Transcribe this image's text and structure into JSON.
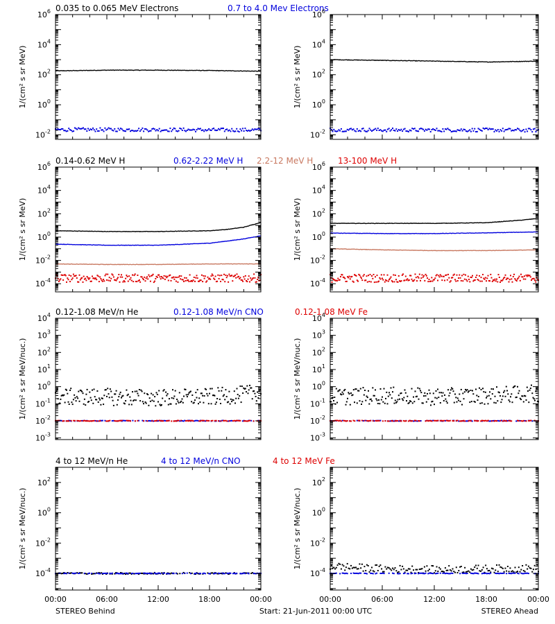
{
  "figure": {
    "footer_left": "STEREO Behind",
    "footer_center": "Start: 21-Jun-2011 00:00 UTC",
    "footer_right": "STEREO Ahead"
  },
  "colors": {
    "black": "#000000",
    "blue": "#0000dd",
    "tan": "#c87860",
    "red": "#dd0000"
  },
  "chart_data": [
    {
      "type": "scatter",
      "panel": "electrons",
      "side": "behind",
      "ylabel": "1/(cm² s sr MeV)",
      "yscale": "log",
      "ylim": [
        0.005,
        1000000
      ],
      "yticks": [
        {
          "v": 0.01,
          "b": "10",
          "e": "-2"
        },
        {
          "v": 1,
          "b": "10",
          "e": "0"
        },
        {
          "v": 100,
          "b": "10",
          "e": "2"
        },
        {
          "v": 10000,
          "b": "10",
          "e": "4"
        },
        {
          "v": 1000000,
          "b": "10",
          "e": "6"
        }
      ],
      "xlim": [
        0,
        24
      ],
      "xticks": [],
      "legend": [
        {
          "label": "0.035 to 0.065 MeV Electrons",
          "color": "#000000"
        },
        {
          "label": "0.7 to 4.0 Mev Electrons",
          "color": "#0000dd"
        }
      ],
      "series": [
        {
          "name": "0.035 to 0.065 MeV Electrons",
          "color": "#000000",
          "style": "line",
          "x": [
            0,
            6,
            12,
            18,
            24
          ],
          "y": [
            180,
            200,
            200,
            190,
            170
          ]
        },
        {
          "name": "0.7 to 4.0 Mev Electrons",
          "color": "#0000dd",
          "style": "dots",
          "x": [
            0,
            6,
            12,
            18,
            24
          ],
          "y": [
            0.022,
            0.022,
            0.022,
            0.021,
            0.021
          ],
          "scatter": 0.12
        }
      ]
    },
    {
      "type": "scatter",
      "panel": "electrons",
      "side": "ahead",
      "ylabel": "1/(cm² s sr MeV)",
      "yscale": "log",
      "ylim": [
        0.005,
        1000000
      ],
      "yticks": [
        {
          "v": 0.01,
          "b": "10",
          "e": "-2"
        },
        {
          "v": 1,
          "b": "10",
          "e": "0"
        },
        {
          "v": 100,
          "b": "10",
          "e": "2"
        },
        {
          "v": 10000,
          "b": "10",
          "e": "4"
        },
        {
          "v": 1000000,
          "b": "10",
          "e": "6"
        }
      ],
      "xlim": [
        0,
        24
      ],
      "xticks": [],
      "legend": [],
      "series": [
        {
          "name": "0.035 to 0.065 MeV Electrons",
          "color": "#000000",
          "style": "line",
          "x": [
            0,
            6,
            12,
            18,
            24
          ],
          "y": [
            1000,
            900,
            800,
            700,
            800
          ]
        },
        {
          "name": "0.7 to 4.0 Mev Electrons",
          "color": "#0000dd",
          "style": "dots",
          "x": [
            0,
            6,
            12,
            18,
            24
          ],
          "y": [
            0.022,
            0.021,
            0.021,
            0.021,
            0.02
          ],
          "scatter": 0.12
        }
      ]
    },
    {
      "type": "scatter",
      "panel": "protons",
      "side": "behind",
      "ylabel": "1/(cm² s sr MeV)",
      "yscale": "log",
      "ylim": [
        2e-05,
        1000000
      ],
      "yticks": [
        {
          "v": 0.0001,
          "b": "10",
          "e": "-4"
        },
        {
          "v": 0.01,
          "b": "10",
          "e": "-2"
        },
        {
          "v": 1,
          "b": "10",
          "e": "0"
        },
        {
          "v": 100,
          "b": "10",
          "e": "2"
        },
        {
          "v": 10000,
          "b": "10",
          "e": "4"
        },
        {
          "v": 1000000,
          "b": "10",
          "e": "6"
        }
      ],
      "xlim": [
        0,
        24
      ],
      "xticks": [],
      "legend": [
        {
          "label": "0.14-0.62 MeV H",
          "color": "#000000"
        },
        {
          "label": "0.62-2.22 MeV H",
          "color": "#0000dd"
        },
        {
          "label": "2.2-12 MeV H",
          "color": "#c87860"
        },
        {
          "label": "13-100 MeV H",
          "color": "#dd0000"
        }
      ],
      "series": [
        {
          "name": "0.14-0.62 MeV H",
          "color": "#000000",
          "style": "line",
          "x": [
            0,
            6,
            12,
            18,
            20,
            22,
            24
          ],
          "y": [
            3.5,
            3,
            3,
            3.5,
            4.5,
            7,
            18
          ]
        },
        {
          "name": "0.62-2.22 MeV H",
          "color": "#0000dd",
          "style": "line",
          "x": [
            0,
            6,
            12,
            18,
            20,
            22,
            24
          ],
          "y": [
            0.25,
            0.2,
            0.2,
            0.3,
            0.45,
            0.7,
            1.3
          ]
        },
        {
          "name": "2.2-12 MeV H",
          "color": "#c87860",
          "style": "line",
          "x": [
            0,
            6,
            12,
            18,
            24
          ],
          "y": [
            0.005,
            0.0045,
            0.0045,
            0.005,
            0.005
          ]
        },
        {
          "name": "13-100 MeV H",
          "color": "#dd0000",
          "style": "dots",
          "x": [
            0,
            6,
            12,
            18,
            24
          ],
          "y": [
            0.0003,
            0.0003,
            0.0003,
            0.0003,
            0.0003
          ],
          "scatter": 0.35
        }
      ]
    },
    {
      "type": "scatter",
      "panel": "protons",
      "side": "ahead",
      "ylabel": "1/(cm² s sr MeV)",
      "yscale": "log",
      "ylim": [
        2e-05,
        1000000
      ],
      "yticks": [
        {
          "v": 0.0001,
          "b": "10",
          "e": "-4"
        },
        {
          "v": 0.01,
          "b": "10",
          "e": "-2"
        },
        {
          "v": 1,
          "b": "10",
          "e": "0"
        },
        {
          "v": 100,
          "b": "10",
          "e": "2"
        },
        {
          "v": 10000,
          "b": "10",
          "e": "4"
        },
        {
          "v": 1000000,
          "b": "10",
          "e": "6"
        }
      ],
      "xlim": [
        0,
        24
      ],
      "xticks": [],
      "legend": [],
      "series": [
        {
          "name": "0.14-0.62 MeV H",
          "color": "#000000",
          "style": "line",
          "x": [
            0,
            6,
            12,
            18,
            20,
            22,
            24
          ],
          "y": [
            15,
            15,
            15,
            17,
            22,
            28,
            40
          ]
        },
        {
          "name": "0.62-2.22 MeV H",
          "color": "#0000dd",
          "style": "line",
          "x": [
            0,
            6,
            12,
            18,
            24
          ],
          "y": [
            2.2,
            2,
            2,
            2.3,
            2.8
          ]
        },
        {
          "name": "2.2-12 MeV H",
          "color": "#c87860",
          "style": "line",
          "x": [
            0,
            6,
            12,
            18,
            24
          ],
          "y": [
            0.1,
            0.08,
            0.07,
            0.07,
            0.08
          ]
        },
        {
          "name": "13-100 MeV H",
          "color": "#dd0000",
          "style": "dots",
          "x": [
            0,
            6,
            12,
            18,
            24
          ],
          "y": [
            0.0003,
            0.0003,
            0.0003,
            0.0003,
            0.0003
          ],
          "scatter": 0.35
        }
      ]
    },
    {
      "type": "scatter",
      "panel": "suprathermal",
      "side": "behind",
      "ylabel": "1/(cm² s sr MeV/nuc.)",
      "yscale": "log",
      "ylim": [
        0.0008,
        10000
      ],
      "yticks": [
        {
          "v": 0.001,
          "b": "10",
          "e": "-3"
        },
        {
          "v": 0.01,
          "b": "10",
          "e": "-2"
        },
        {
          "v": 0.1,
          "b": "10",
          "e": "-1"
        },
        {
          "v": 1,
          "b": "10",
          "e": "0"
        },
        {
          "v": 10,
          "b": "10",
          "e": "1"
        },
        {
          "v": 100,
          "b": "10",
          "e": "2"
        },
        {
          "v": 1000,
          "b": "10",
          "e": "3"
        },
        {
          "v": 10000,
          "b": "10",
          "e": "4"
        }
      ],
      "xlim": [
        0,
        24
      ],
      "xticks": [],
      "legend": [
        {
          "label": "0.12-1.08 MeV/n He",
          "color": "#000000"
        },
        {
          "label": "0.12-1.08 MeV/n CNO",
          "color": "#0000dd"
        },
        {
          "label": "0.12-1.08 MeV Fe",
          "color": "#dd0000"
        }
      ],
      "series": [
        {
          "name": "0.12-1.08 MeV/n He",
          "color": "#000000",
          "style": "dots",
          "x": [
            0,
            6,
            12,
            18,
            22,
            24
          ],
          "y": [
            0.25,
            0.25,
            0.22,
            0.25,
            0.35,
            0.5
          ],
          "scatter": 0.5
        },
        {
          "name": "0.12-1.08 MeV/n CNO",
          "color": "#0000dd",
          "style": "dots",
          "x": [
            0,
            24
          ],
          "y": [
            0.01,
            0.01
          ],
          "scatter": 0.02
        },
        {
          "name": "0.12-1.08 MeV Fe",
          "color": "#dd0000",
          "style": "dots",
          "x": [
            0,
            24
          ],
          "y": [
            0.01,
            0.01
          ],
          "scatter": 0.02
        }
      ]
    },
    {
      "type": "scatter",
      "panel": "suprathermal",
      "side": "ahead",
      "ylabel": "1/(cm² s sr MeV/nuc.)",
      "yscale": "log",
      "ylim": [
        0.0008,
        10000
      ],
      "yticks": [
        {
          "v": 0.001,
          "b": "10",
          "e": "-3"
        },
        {
          "v": 0.01,
          "b": "10",
          "e": "-2"
        },
        {
          "v": 0.1,
          "b": "10",
          "e": "-1"
        },
        {
          "v": 1,
          "b": "10",
          "e": "0"
        },
        {
          "v": 10,
          "b": "10",
          "e": "1"
        },
        {
          "v": 100,
          "b": "10",
          "e": "2"
        },
        {
          "v": 1000,
          "b": "10",
          "e": "3"
        },
        {
          "v": 10000,
          "b": "10",
          "e": "4"
        }
      ],
      "xlim": [
        0,
        24
      ],
      "xticks": [],
      "legend": [],
      "series": [
        {
          "name": "0.12-1.08 MeV/n He",
          "color": "#000000",
          "style": "dots",
          "x": [
            0,
            6,
            12,
            18,
            24
          ],
          "y": [
            0.25,
            0.3,
            0.25,
            0.3,
            0.4
          ],
          "scatter": 0.5
        },
        {
          "name": "0.12-1.08 MeV/n CNO",
          "color": "#0000dd",
          "style": "dots",
          "x": [
            0,
            24
          ],
          "y": [
            0.01,
            0.01
          ],
          "scatter": 0.02
        },
        {
          "name": "0.12-1.08 MeV Fe",
          "color": "#dd0000",
          "style": "dots",
          "x": [
            0,
            24
          ],
          "y": [
            0.01,
            0.01
          ],
          "scatter": 0.02
        }
      ]
    },
    {
      "type": "scatter",
      "panel": "energetic",
      "side": "behind",
      "ylabel": "1/(cm² s sr MeV/nuc.)",
      "yscale": "log",
      "ylim": [
        8e-06,
        1000
      ],
      "yticks": [
        {
          "v": 0.0001,
          "b": "10",
          "e": "-4"
        },
        {
          "v": 0.01,
          "b": "10",
          "e": "-2"
        },
        {
          "v": 1,
          "b": "10",
          "e": "0"
        },
        {
          "v": 100,
          "b": "10",
          "e": "2"
        }
      ],
      "xlim": [
        0,
        24
      ],
      "xticks": [
        "00:00",
        "06:00",
        "12:00",
        "18:00",
        "00:00"
      ],
      "legend": [
        {
          "label": "4 to 12 MeV/n He",
          "color": "#000000"
        },
        {
          "label": "4 to 12 MeV/n CNO",
          "color": "#0000dd"
        },
        {
          "label": "4 to 12 MeV Fe",
          "color": "#dd0000"
        }
      ],
      "series": [
        {
          "name": "4 to 12 MeV/n He",
          "color": "#000000",
          "style": "dots",
          "x": [
            0,
            24
          ],
          "y": [
            0.0001,
            0.0001
          ],
          "scatter": 0.05
        },
        {
          "name": "4 to 12 MeV/n CNO",
          "color": "#0000dd",
          "style": "dots",
          "x": [
            0,
            24
          ],
          "y": [
            0.0001,
            0.0001
          ],
          "scatter": 0.02
        }
      ]
    },
    {
      "type": "scatter",
      "panel": "energetic",
      "side": "ahead",
      "ylabel": "1/(cm² s sr MeV/nuc.)",
      "yscale": "log",
      "ylim": [
        8e-06,
        1000
      ],
      "yticks": [
        {
          "v": 0.0001,
          "b": "10",
          "e": "-4"
        },
        {
          "v": 0.01,
          "b": "10",
          "e": "-2"
        },
        {
          "v": 1,
          "b": "10",
          "e": "0"
        },
        {
          "v": 100,
          "b": "10",
          "e": "2"
        }
      ],
      "xlim": [
        0,
        24
      ],
      "xticks": [
        "00:00",
        "06:00",
        "12:00",
        "18:00",
        "00:00"
      ],
      "legend": [],
      "series": [
        {
          "name": "4 to 12 MeV/n He",
          "color": "#000000",
          "style": "dots",
          "x": [
            0,
            6,
            12,
            18,
            24
          ],
          "y": [
            0.0003,
            0.0002,
            0.00018,
            0.0002,
            0.00022
          ],
          "scatter": 0.25
        },
        {
          "name": "4 to 12 MeV/n CNO",
          "color": "#0000dd",
          "style": "dots",
          "x": [
            0,
            24
          ],
          "y": [
            0.0001,
            0.0001
          ],
          "scatter": 0.02
        }
      ]
    }
  ]
}
